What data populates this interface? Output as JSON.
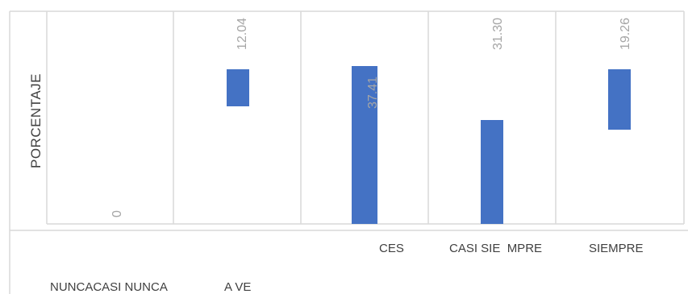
{
  "chart_data": {
    "type": "bar",
    "ylabel": "PORCENTAJE",
    "categories": [
      "NUNCACASI NUNCA",
      "A VE",
      "CES",
      "CASI SIE  MPRE",
      "SIEMPRE"
    ],
    "values": [
      0,
      12.04,
      37.41,
      31.3,
      19.26
    ],
    "value_labels": [
      "0",
      "12.04",
      "37.41",
      "31.30",
      "19.26"
    ],
    "colors": {
      "bar": "#4472c4",
      "label": "#a6a6a6",
      "grid": "#d9d9d9"
    }
  }
}
